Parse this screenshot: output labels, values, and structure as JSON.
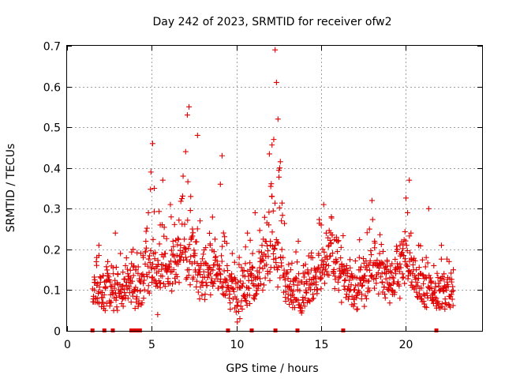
{
  "chart_data": {
    "type": "scatter",
    "title": "Day 242 of 2023, SRMTID for receiver ofw2",
    "xlabel": "GPS time / hours",
    "ylabel": "SRMTID / TECUs",
    "xlim": [
      0,
      24.5
    ],
    "ylim": [
      0,
      0.7
    ],
    "xticks": [
      0,
      5,
      10,
      15,
      20
    ],
    "xtick_labels": [
      "0",
      "5",
      "10",
      "15",
      "20"
    ],
    "yticks": [
      0,
      0.1,
      0.2,
      0.3,
      0.4,
      0.5,
      0.6,
      0.7
    ],
    "ytick_labels": [
      "0",
      "0.1",
      "0.2",
      "0.3",
      "0.4",
      "0.5",
      "0.6",
      "0.7"
    ],
    "grid": true,
    "marker": "plus",
    "color": "#e00000",
    "data_extent_hours": [
      1.5,
      22.8
    ],
    "activity_profile": [
      {
        "hour": 1.5,
        "median": 0.12,
        "spread": 0.07
      },
      {
        "hour": 2.5,
        "median": 0.13,
        "spread": 0.08
      },
      {
        "hour": 3.5,
        "median": 0.13,
        "spread": 0.07
      },
      {
        "hour": 4.5,
        "median": 0.14,
        "spread": 0.1
      },
      {
        "hour": 5.0,
        "median": 0.17,
        "spread": 0.2
      },
      {
        "hour": 6.0,
        "median": 0.17,
        "spread": 0.15
      },
      {
        "hour": 7.0,
        "median": 0.2,
        "spread": 0.24
      },
      {
        "hour": 8.0,
        "median": 0.15,
        "spread": 0.12
      },
      {
        "hour": 9.0,
        "median": 0.17,
        "spread": 0.14
      },
      {
        "hour": 10.0,
        "median": 0.1,
        "spread": 0.1
      },
      {
        "hour": 11.0,
        "median": 0.15,
        "spread": 0.12
      },
      {
        "hour": 12.3,
        "median": 0.2,
        "spread": 0.35
      },
      {
        "hour": 13.0,
        "median": 0.12,
        "spread": 0.08
      },
      {
        "hour": 14.0,
        "median": 0.12,
        "spread": 0.08
      },
      {
        "hour": 15.5,
        "median": 0.2,
        "spread": 0.12
      },
      {
        "hour": 17.0,
        "median": 0.12,
        "spread": 0.08
      },
      {
        "hour": 18.0,
        "median": 0.17,
        "spread": 0.14
      },
      {
        "hour": 19.0,
        "median": 0.14,
        "spread": 0.08
      },
      {
        "hour": 20.2,
        "median": 0.18,
        "spread": 0.19
      },
      {
        "hour": 21.0,
        "median": 0.13,
        "spread": 0.1
      },
      {
        "hour": 22.0,
        "median": 0.12,
        "spread": 0.08
      },
      {
        "hour": 22.8,
        "median": 0.13,
        "spread": 0.06
      }
    ],
    "series": [
      {
        "name": "SRMTID",
        "points": [
          [
            1.62,
            0.1
          ],
          [
            1.75,
            0.18
          ],
          [
            1.88,
            0.21
          ],
          [
            2.0,
            0.13
          ],
          [
            2.12,
            0.07
          ],
          [
            2.25,
            0.05
          ],
          [
            2.4,
            0.17
          ],
          [
            2.55,
            0.12
          ],
          [
            2.7,
            0.09
          ],
          [
            2.85,
            0.24
          ],
          [
            3.0,
            0.14
          ],
          [
            3.15,
            0.19
          ],
          [
            3.3,
            0.11
          ],
          [
            3.45,
            0.16
          ],
          [
            3.6,
            0.08
          ],
          [
            3.75,
            0.13
          ],
          [
            3.9,
            0.2
          ],
          [
            4.05,
            0.15
          ],
          [
            4.2,
            0.06
          ],
          [
            4.35,
            0.12
          ],
          [
            4.5,
            0.18
          ],
          [
            4.65,
            0.22
          ],
          [
            4.8,
            0.29
          ],
          [
            4.95,
            0.39
          ],
          [
            5.05,
            0.46
          ],
          [
            5.15,
            0.35
          ],
          [
            5.25,
            0.11
          ],
          [
            5.35,
            0.04
          ],
          [
            5.5,
            0.26
          ],
          [
            5.65,
            0.37
          ],
          [
            5.8,
            0.19
          ],
          [
            5.95,
            0.15
          ],
          [
            6.1,
            0.31
          ],
          [
            6.25,
            0.22
          ],
          [
            6.4,
            0.12
          ],
          [
            6.55,
            0.17
          ],
          [
            6.7,
            0.21
          ],
          [
            6.85,
            0.38
          ],
          [
            7.0,
            0.44
          ],
          [
            7.1,
            0.53
          ],
          [
            7.2,
            0.55
          ],
          [
            7.3,
            0.33
          ],
          [
            7.4,
            0.25
          ],
          [
            7.55,
            0.19
          ],
          [
            7.7,
            0.48
          ],
          [
            7.85,
            0.27
          ],
          [
            8.0,
            0.12
          ],
          [
            8.15,
            0.09
          ],
          [
            8.3,
            0.16
          ],
          [
            8.45,
            0.21
          ],
          [
            8.6,
            0.11
          ],
          [
            8.75,
            0.18
          ],
          [
            8.9,
            0.14
          ],
          [
            9.05,
            0.36
          ],
          [
            9.15,
            0.43
          ],
          [
            9.3,
            0.22
          ],
          [
            9.45,
            0.16
          ],
          [
            9.6,
            0.09
          ],
          [
            9.75,
            0.19
          ],
          [
            9.9,
            0.13
          ],
          [
            10.05,
            0.06
          ],
          [
            10.2,
            0.03
          ],
          [
            10.35,
            0.11
          ],
          [
            10.5,
            0.08
          ],
          [
            10.65,
            0.24
          ],
          [
            10.8,
            0.15
          ],
          [
            10.95,
            0.19
          ],
          [
            11.1,
            0.29
          ],
          [
            11.25,
            0.13
          ],
          [
            11.4,
            0.17
          ],
          [
            11.55,
            0.1
          ],
          [
            11.7,
            0.22
          ],
          [
            11.85,
            0.14
          ],
          [
            12.0,
            0.21
          ],
          [
            12.1,
            0.33
          ],
          [
            12.2,
            0.47
          ],
          [
            12.28,
            0.69
          ],
          [
            12.36,
            0.61
          ],
          [
            12.45,
            0.52
          ],
          [
            12.55,
            0.4
          ],
          [
            12.65,
            0.27
          ],
          [
            12.75,
            0.18
          ],
          [
            12.9,
            0.11
          ],
          [
            13.05,
            0.09
          ],
          [
            13.2,
            0.15
          ],
          [
            13.35,
            0.07
          ],
          [
            13.5,
            0.13
          ],
          [
            13.65,
            0.22
          ],
          [
            13.8,
            0.12
          ],
          [
            13.95,
            0.16
          ],
          [
            14.1,
            0.1
          ],
          [
            14.25,
            0.14
          ],
          [
            14.4,
            0.18
          ],
          [
            14.55,
            0.08
          ],
          [
            14.7,
            0.12
          ],
          [
            14.85,
            0.19
          ],
          [
            15.0,
            0.26
          ],
          [
            15.15,
            0.31
          ],
          [
            15.3,
            0.24
          ],
          [
            15.45,
            0.21
          ],
          [
            15.6,
            0.28
          ],
          [
            15.75,
            0.17
          ],
          [
            15.9,
            0.23
          ],
          [
            16.05,
            0.13
          ],
          [
            16.2,
            0.07
          ],
          [
            16.35,
            0.11
          ],
          [
            16.5,
            0.16
          ],
          [
            16.65,
            0.1
          ],
          [
            16.8,
            0.14
          ],
          [
            16.95,
            0.08
          ],
          [
            17.1,
            0.13
          ],
          [
            17.25,
            0.18
          ],
          [
            17.4,
            0.11
          ],
          [
            17.55,
            0.06
          ],
          [
            17.7,
            0.15
          ],
          [
            17.85,
            0.25
          ],
          [
            18.0,
            0.32
          ],
          [
            18.15,
            0.22
          ],
          [
            18.3,
            0.16
          ],
          [
            18.45,
            0.19
          ],
          [
            18.6,
            0.12
          ],
          [
            18.75,
            0.09
          ],
          [
            18.9,
            0.17
          ],
          [
            19.05,
            0.13
          ],
          [
            19.2,
            0.1
          ],
          [
            19.35,
            0.15
          ],
          [
            19.5,
            0.2
          ],
          [
            19.65,
            0.08
          ],
          [
            19.8,
            0.13
          ],
          [
            19.95,
            0.17
          ],
          [
            20.1,
            0.29
          ],
          [
            20.2,
            0.37
          ],
          [
            20.3,
            0.24
          ],
          [
            20.45,
            0.15
          ],
          [
            20.6,
            0.11
          ],
          [
            20.75,
            0.21
          ],
          [
            20.9,
            0.14
          ],
          [
            21.05,
            0.09
          ],
          [
            21.2,
            0.18
          ],
          [
            21.35,
            0.3
          ],
          [
            21.5,
            0.12
          ],
          [
            21.65,
            0.16
          ],
          [
            21.8,
            0.08
          ],
          [
            21.95,
            0.11
          ],
          [
            22.1,
            0.21
          ],
          [
            22.25,
            0.14
          ],
          [
            22.4,
            0.1
          ],
          [
            22.55,
            0.17
          ],
          [
            22.7,
            0.12
          ],
          [
            22.8,
            0.15
          ]
        ]
      }
    ],
    "zero_points_hours": [
      1.5,
      2.2,
      2.7,
      3.8,
      4.0,
      4.2,
      4.3,
      9.5,
      10.9,
      12.3,
      13.6,
      16.3,
      21.8
    ]
  }
}
